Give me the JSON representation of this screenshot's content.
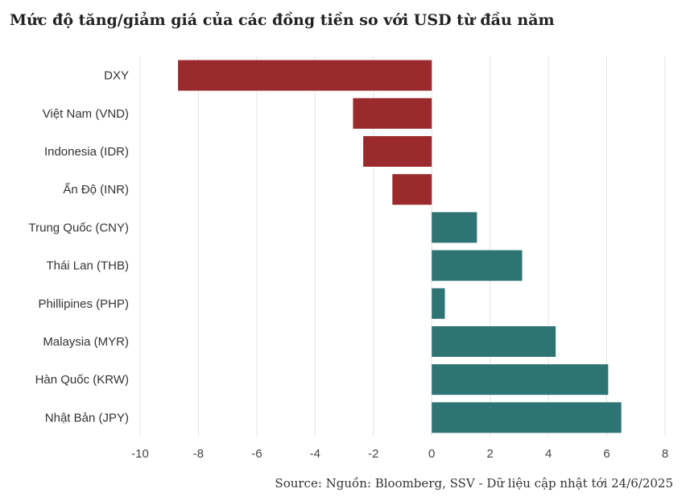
{
  "chart_data": {
    "type": "bar",
    "orientation": "horizontal",
    "title": "Mức độ tăng/giảm giá của các đồng tiền so với USD từ đầu năm",
    "source": "Source: Nguồn: Bloomberg, SSV - Dữ liệu cập nhật tới 24/6/2025",
    "categories": [
      "DXY",
      "Việt Nam (VND)",
      "Indonesia (IDR)",
      "Ấn Độ (INR)",
      "Trung Quốc (CNY)",
      "Thái Lan (THB)",
      "Phillipines (PHP)",
      "Malaysia (MYR)",
      "Hàn Quốc (KRW)",
      "Nhật Bản (JPY)"
    ],
    "values": [
      -8.7,
      -2.7,
      -2.35,
      -1.35,
      1.55,
      3.1,
      0.45,
      4.25,
      6.05,
      6.5
    ],
    "xlim": [
      -10,
      8
    ],
    "xticks": [
      -10,
      -8,
      -6,
      -4,
      -2,
      0,
      2,
      4,
      6,
      8
    ],
    "grid": true,
    "colors": {
      "negative": "#9b2a2c",
      "positive": "#2f7474",
      "grid": "#e3e3e3"
    }
  }
}
